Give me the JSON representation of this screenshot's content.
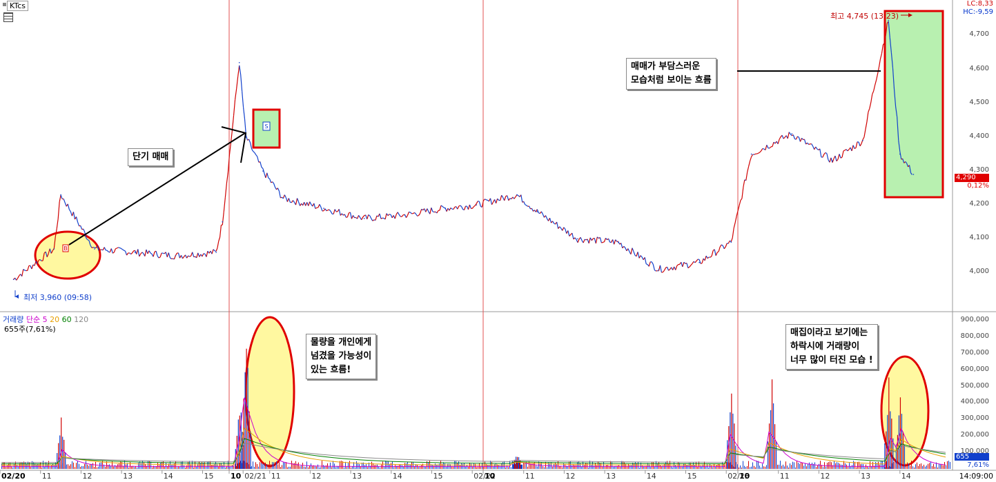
{
  "header": {
    "symbol": "KTcs",
    "lc_label": "LC:8,33",
    "hc_label": "HC:-9,59"
  },
  "price_axis": {
    "ticks": [
      "4,700",
      "4,600",
      "4,500",
      "4,400",
      "4,300",
      "4,200",
      "4,100",
      "4,000"
    ],
    "current_price": "4,290",
    "current_change": "0,12%"
  },
  "volume_axis": {
    "ticks": [
      "900,000",
      "800,000",
      "700,000",
      "600,000",
      "500,000",
      "400,000",
      "300,000",
      "200,000",
      "100,000"
    ],
    "current_volume": "655",
    "current_pct": "7,61%"
  },
  "volume_legend": {
    "name": "거래량",
    "type": "단순",
    "ma": [
      "5",
      "20",
      "60",
      "120"
    ],
    "colors": [
      "#cc00cc",
      "#e8a000",
      "#008000",
      "#888888"
    ],
    "sub": "655주(7,61%)"
  },
  "time_axis": {
    "labels": [
      "02/20",
      "11",
      "12",
      "13",
      "14",
      "15",
      "02/21",
      "10",
      "11",
      "12",
      "13",
      "14",
      "15",
      "02/22",
      "10",
      "11",
      "12",
      "13",
      "14",
      "15",
      "02/23",
      "10",
      "11",
      "12",
      "13",
      "14"
    ],
    "clock": "14:09:00"
  },
  "markers": {
    "min_label": "최저 3,960 (09:58)",
    "max_label": "최고 4,745 (13:23)",
    "buy_marker": "B",
    "sell_marker": "S"
  },
  "annotations": {
    "short_trade": "단기 매매",
    "burden": [
      "매매가 부담스러운",
      "모습처럼 보이는 흐름"
    ],
    "handover": [
      "물량을 개인에게",
      "넘겼을 가능성이",
      "있는 흐름!"
    ],
    "dump": [
      "매집이라고 보기에는",
      "하락시에 거래량이",
      "너무 많이 터진 모습 !"
    ]
  },
  "colors": {
    "up": "#d00000",
    "down": "#1140cc",
    "highlight_fill": "#b8f0b0",
    "ellipse_fill": "#fff8a0",
    "divider": "#d00000"
  },
  "chart_data": {
    "type": "line",
    "title": "",
    "series": [
      {
        "name": "",
        "x": [
          "02/20 10:00",
          "02/20 11:00",
          "02/20 11:10",
          "02/20 12:00",
          "02/20 13:00",
          "02/20 14:00",
          "02/20 15:00",
          "02/21 09:30",
          "02/21 09:55",
          "02/21 10:05",
          "02/21 10:30",
          "02/21 11:00",
          "02/21 12:00",
          "02/21 13:00",
          "02/21 14:00",
          "02/21 15:00",
          "02/22 09:30",
          "02/22 10:30",
          "02/22 11:00",
          "02/22 12:00",
          "02/22 13:00",
          "02/22 14:00",
          "02/22 15:00",
          "02/23 09:30",
          "02/23 10:00",
          "02/23 11:00",
          "02/23 12:00",
          "02/23 12:45",
          "02/23 13:23",
          "02/23 13:40",
          "02/23 14:00"
        ],
        "values": [
          3980,
          4070,
          4230,
          4070,
          4060,
          4050,
          4060,
          4150,
          4620,
          4400,
          4300,
          4220,
          4190,
          4160,
          4170,
          4190,
          4200,
          4230,
          4180,
          4100,
          4090,
          4010,
          4030,
          4090,
          4350,
          4410,
          4330,
          4390,
          4745,
          4350,
          4290
        ]
      }
    ],
    "volume": {
      "name": "거래량",
      "x": [
        "02/20 11:10",
        "02/21 09:55",
        "02/21 10:05",
        "02/22 10:30",
        "02/23 09:30",
        "02/23 10:30",
        "02/23 13:23",
        "02/23 13:40"
      ],
      "values": [
        320000,
        450000,
        880000,
        100000,
        560000,
        560000,
        570000,
        480000
      ]
    },
    "xlabel": "",
    "ylabel": "",
    "ylim": [
      3950,
      4760
    ],
    "volume_ylim": [
      0,
      900000
    ],
    "grid": false,
    "legend": "top-left"
  }
}
